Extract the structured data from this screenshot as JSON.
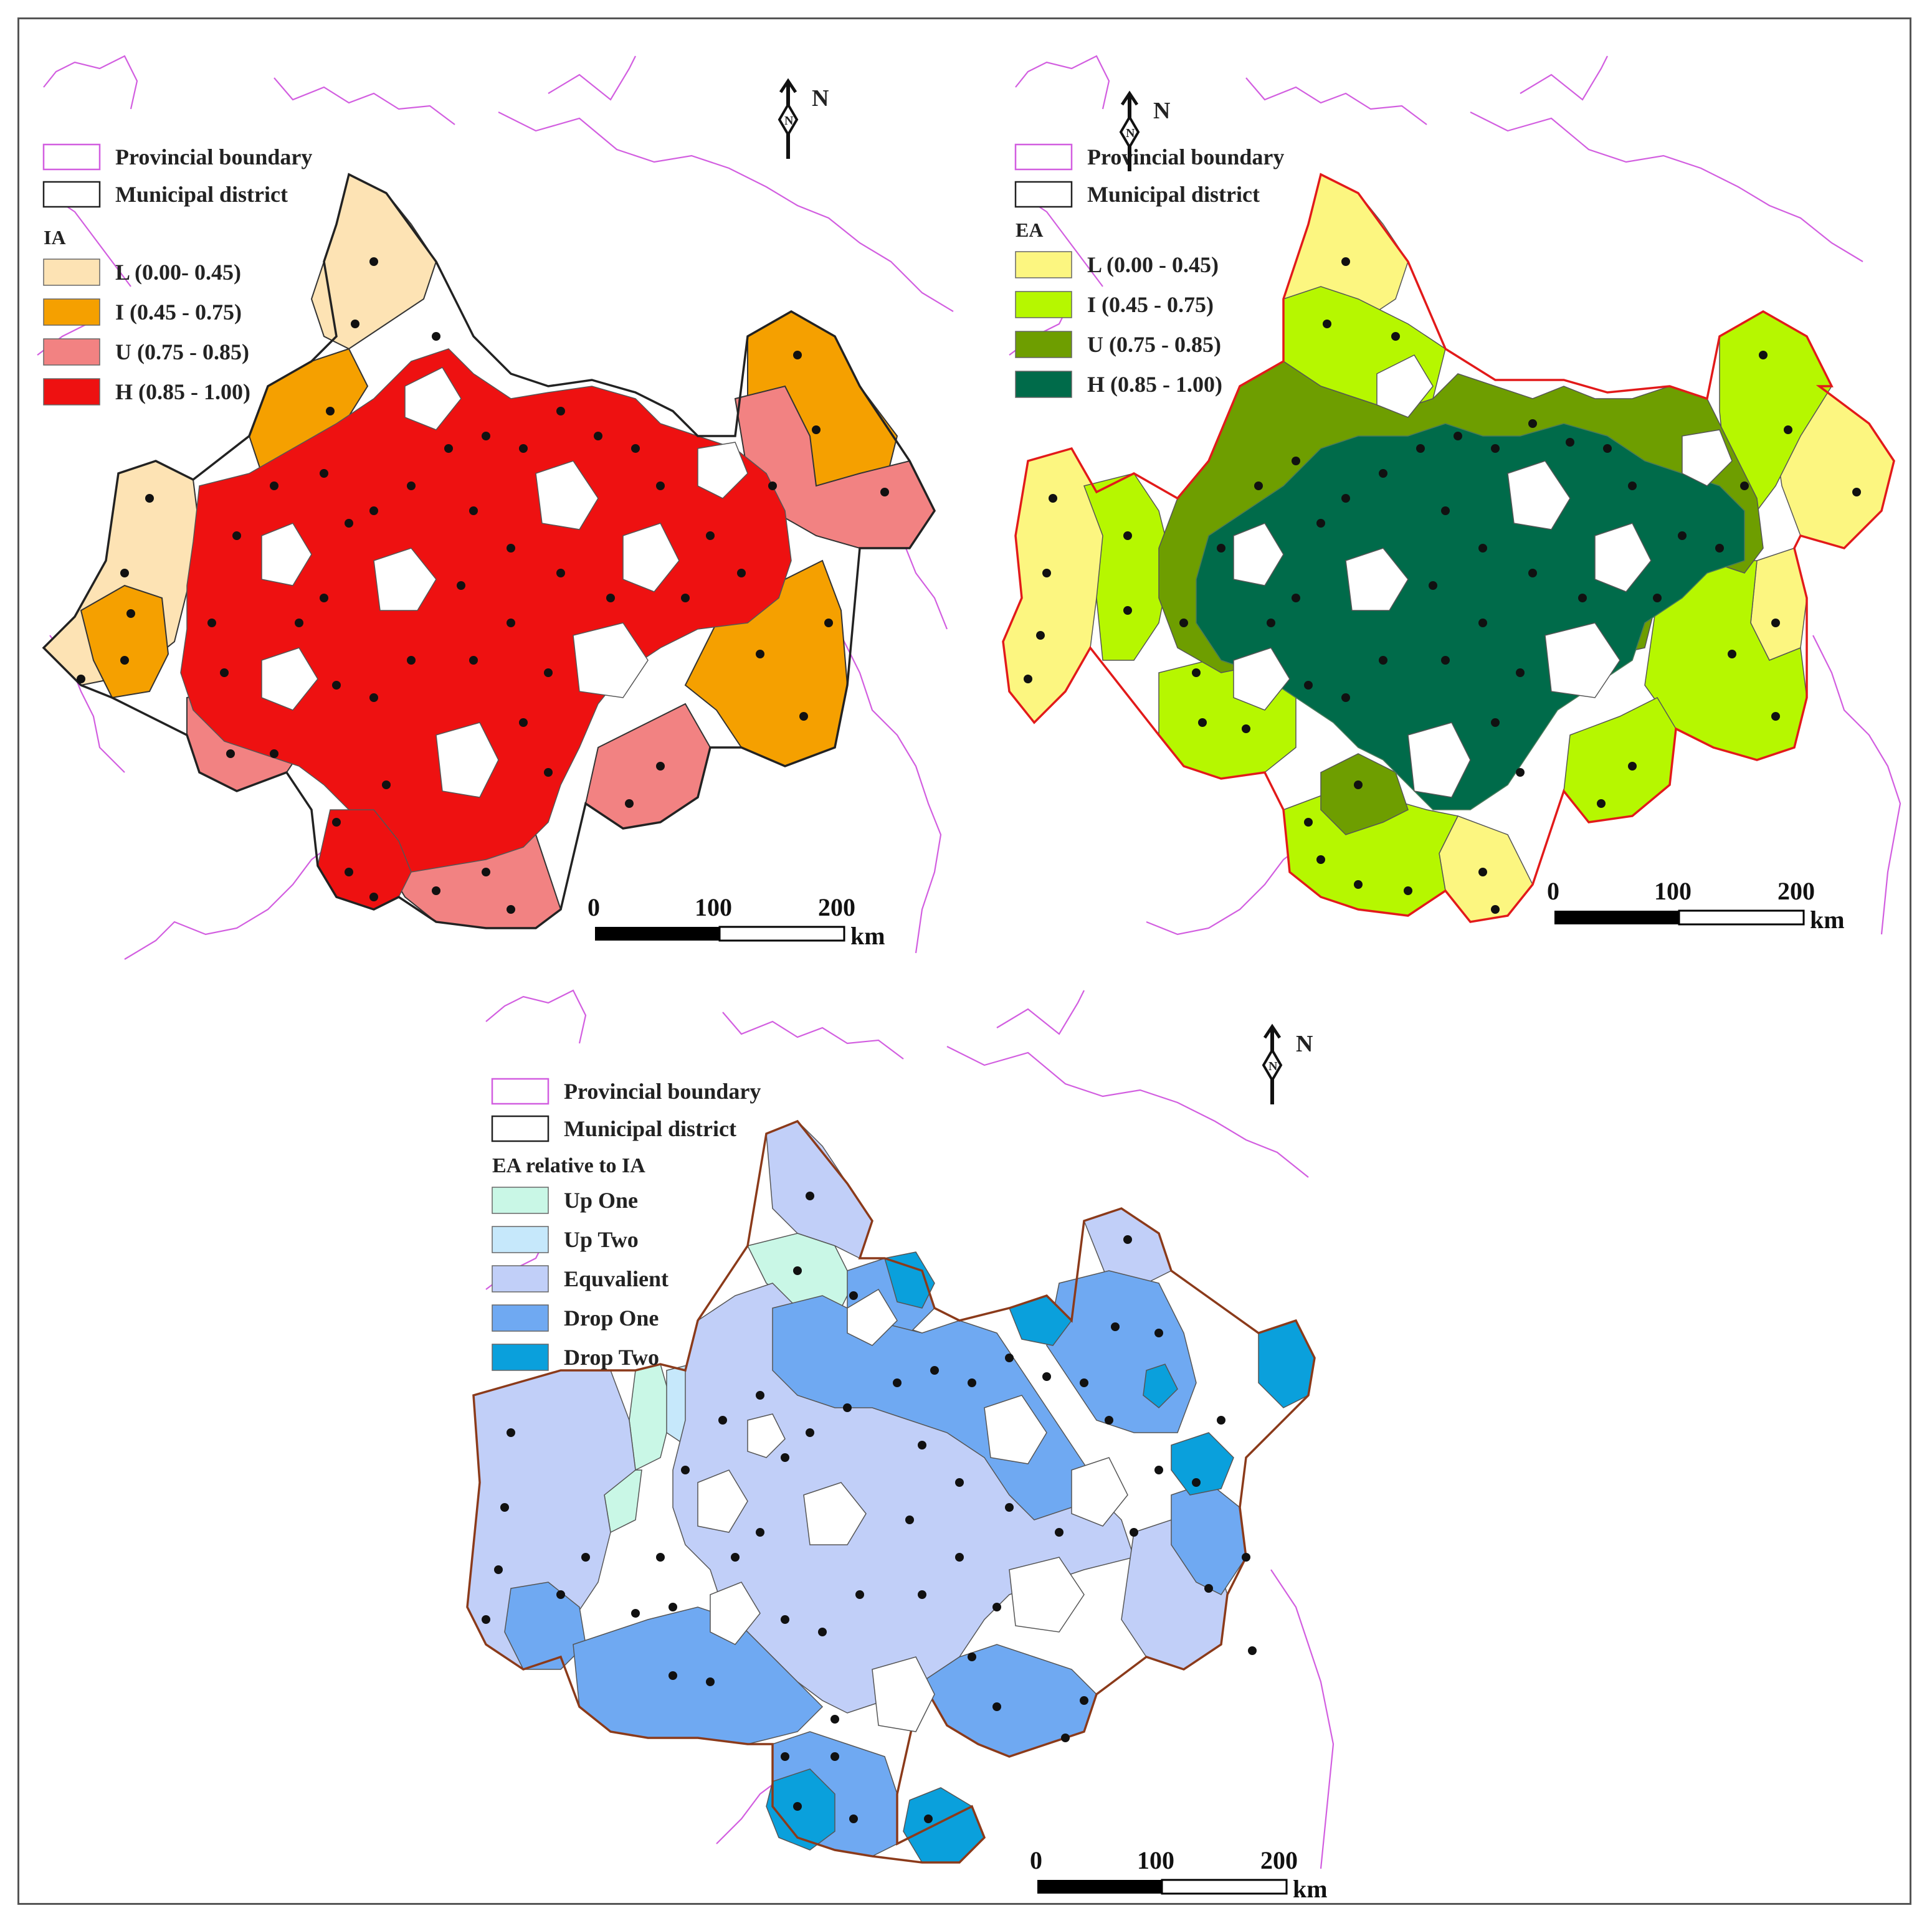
{
  "panels": [
    {
      "id": "ia",
      "legend": {
        "provincial_boundary": "Provincial boundary",
        "municipal_district": "Municipal district",
        "title": "IA",
        "classes": [
          {
            "label": "L (0.00- 0.45)",
            "color": "#fde3b4"
          },
          {
            "label": "I  (0.45 - 0.75)",
            "color": "#f5a000"
          },
          {
            "label": "U (0.75 - 0.85)",
            "color": "#f28282"
          },
          {
            "label": "H (0.85 - 1.00)",
            "color": "#ee1111"
          }
        ]
      },
      "region_outline_color": "#222222",
      "north": "N",
      "scale": {
        "ticks": [
          "0",
          "100",
          "200"
        ],
        "unit": "km"
      }
    },
    {
      "id": "ea",
      "legend": {
        "provincial_boundary": "Provincial boundary",
        "municipal_district": "Municipal district",
        "title": "EA",
        "classes": [
          {
            "label": "L (0.00 - 0.45)",
            "color": "#fcf680"
          },
          {
            "label": "I (0.45 - 0.75)",
            "color": "#b6f700"
          },
          {
            "label": "U (0.75 - 0.85)",
            "color": "#6e9e00"
          },
          {
            "label": "H (0.85 - 1.00)",
            "color": "#006b4a"
          }
        ]
      },
      "region_outline_color": "#e21a1a",
      "north": "N",
      "scale": {
        "ticks": [
          "0",
          "100",
          "200"
        ],
        "unit": "km"
      }
    },
    {
      "id": "change",
      "legend": {
        "provincial_boundary": "Provincial boundary",
        "municipal_district": "Municipal district",
        "title": "EA relative to IA",
        "classes": [
          {
            "label": "Up One",
            "color": "#c9f7e6"
          },
          {
            "label": "Up Two",
            "color": "#c6e8fb"
          },
          {
            "label": "Equvalient",
            "color": "#c1cff8"
          },
          {
            "label": "Drop One",
            "color": "#6fa9f2"
          },
          {
            "label": "Drop Two",
            "color": "#0aa0dc"
          }
        ]
      },
      "region_outline_color": "#8b3a1a",
      "north": "N",
      "scale": {
        "ticks": [
          "0",
          "100",
          "200"
        ],
        "unit": "km"
      }
    }
  ],
  "provincial_line_color": "#d25ee0"
}
